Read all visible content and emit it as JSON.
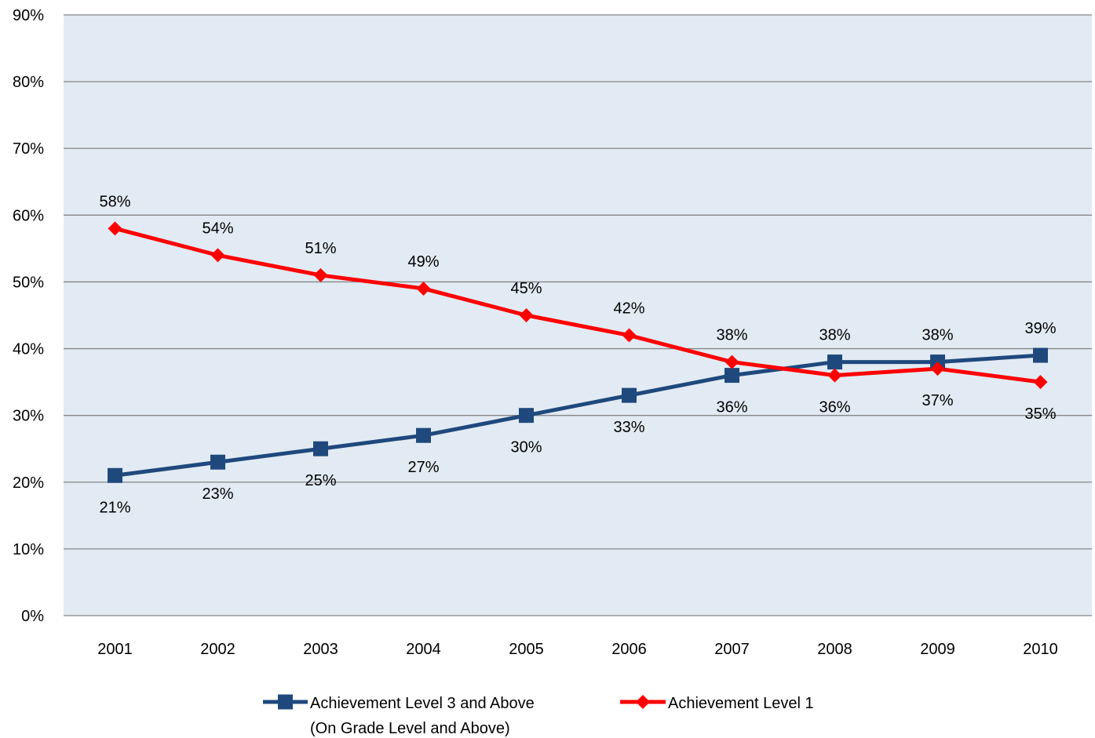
{
  "chart_data": {
    "type": "line",
    "title": "",
    "xlabel": "",
    "ylabel": "",
    "categories": [
      "2001",
      "2002",
      "2003",
      "2004",
      "2005",
      "2006",
      "2007",
      "2008",
      "2009",
      "2010"
    ],
    "ylim": [
      0,
      90
    ],
    "yticks": [
      0,
      10,
      20,
      30,
      40,
      50,
      60,
      70,
      80,
      90
    ],
    "ytick_labels": [
      "0%",
      "10%",
      "20%",
      "30%",
      "40%",
      "50%",
      "60%",
      "70%",
      "80%",
      "90%"
    ],
    "grid": true,
    "legend_position": "bottom",
    "background_color": "#e2ebf4",
    "series": [
      {
        "name": "Achievement Level 3 and Above",
        "name_line2": "(On Grade Level and Above)",
        "color": "#1f497d",
        "marker": "square",
        "values": [
          21,
          23,
          25,
          27,
          30,
          33,
          36,
          38,
          38,
          39
        ],
        "labels": [
          "21%",
          "23%",
          "25%",
          "27%",
          "30%",
          "33%",
          "36%",
          "38%",
          "38%",
          "39%"
        ]
      },
      {
        "name": "Achievement Level 1",
        "color": "#ff0000",
        "marker": "diamond",
        "values": [
          58,
          54,
          51,
          49,
          45,
          42,
          38,
          36,
          37,
          35
        ],
        "labels": [
          "58%",
          "54%",
          "51%",
          "49%",
          "45%",
          "42%",
          "38%",
          "36%",
          "37%",
          "35%"
        ]
      }
    ]
  }
}
